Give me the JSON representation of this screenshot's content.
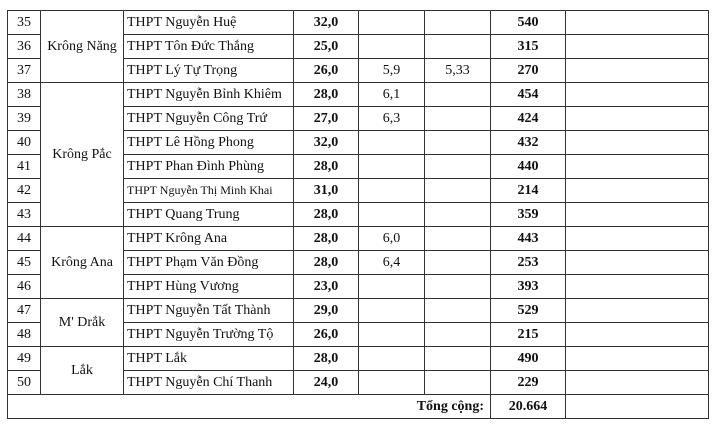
{
  "rows": [
    {
      "no": "35",
      "district": "Krông Năng",
      "span": 3,
      "school": "THPT Nguyễn Huệ",
      "score": "32,0",
      "c1": "",
      "c2": "",
      "total": "540"
    },
    {
      "no": "36",
      "school": "THPT Tôn Đức Thắng",
      "score": "25,0",
      "c1": "",
      "c2": "",
      "total": "315"
    },
    {
      "no": "37",
      "school": "THPT Lý Tự Trọng",
      "score": "26,0",
      "c1": "5,9",
      "c2": "5,33",
      "total": "270"
    },
    {
      "no": "38",
      "district": "Krông Pắc",
      "span": 6,
      "school": "THPT Nguyễn Bỉnh Khiêm",
      "score": "28,0",
      "c1": "6,1",
      "c2": "",
      "total": "454"
    },
    {
      "no": "39",
      "school": "THPT Nguyễn Công Trứ",
      "score": "27,0",
      "c1": "6,3",
      "c2": "",
      "total": "424"
    },
    {
      "no": "40",
      "school": "THPT Lê Hồng Phong",
      "score": "32,0",
      "c1": "",
      "c2": "",
      "total": "432"
    },
    {
      "no": "41",
      "school": "THPT Phan Đình Phùng",
      "score": "28,0",
      "c1": "",
      "c2": "",
      "total": "440"
    },
    {
      "no": "42",
      "school": "THPT Nguyễn Thị Minh Khai",
      "score": "31,0",
      "c1": "",
      "c2": "",
      "total": "214"
    },
    {
      "no": "43",
      "school": "THPT Quang Trung",
      "score": "28,0",
      "c1": "",
      "c2": "",
      "total": "359"
    },
    {
      "no": "44",
      "district": "Krông Ana",
      "span": 3,
      "school": "THPT Krông Ana",
      "score": "28,0",
      "c1": "6,0",
      "c2": "",
      "total": "443"
    },
    {
      "no": "45",
      "school": "THPT Phạm Văn Đồng",
      "score": "28,0",
      "c1": "6,4",
      "c2": "",
      "total": "253"
    },
    {
      "no": "46",
      "school": "THPT Hùng Vương",
      "score": "23,0",
      "c1": "",
      "c2": "",
      "total": "393"
    },
    {
      "no": "47",
      "district": "M' Drắk",
      "span": 2,
      "school": "THPT Nguyễn Tất Thành",
      "score": "29,0",
      "c1": "",
      "c2": "",
      "total": "529"
    },
    {
      "no": "48",
      "school": "THPT Nguyễn Trường Tộ",
      "score": "26,0",
      "c1": "",
      "c2": "",
      "total": "215"
    },
    {
      "no": "49",
      "district": "Lắk",
      "span": 2,
      "school": "THPT Lắk",
      "score": "28,0",
      "c1": "",
      "c2": "",
      "total": "490"
    },
    {
      "no": "50",
      "school": "THPT Nguyễn Chí Thanh",
      "score": "24,0",
      "c1": "",
      "c2": "",
      "total": "229"
    }
  ],
  "footer": {
    "label": "Tổng cộng:",
    "total": "20.664"
  }
}
